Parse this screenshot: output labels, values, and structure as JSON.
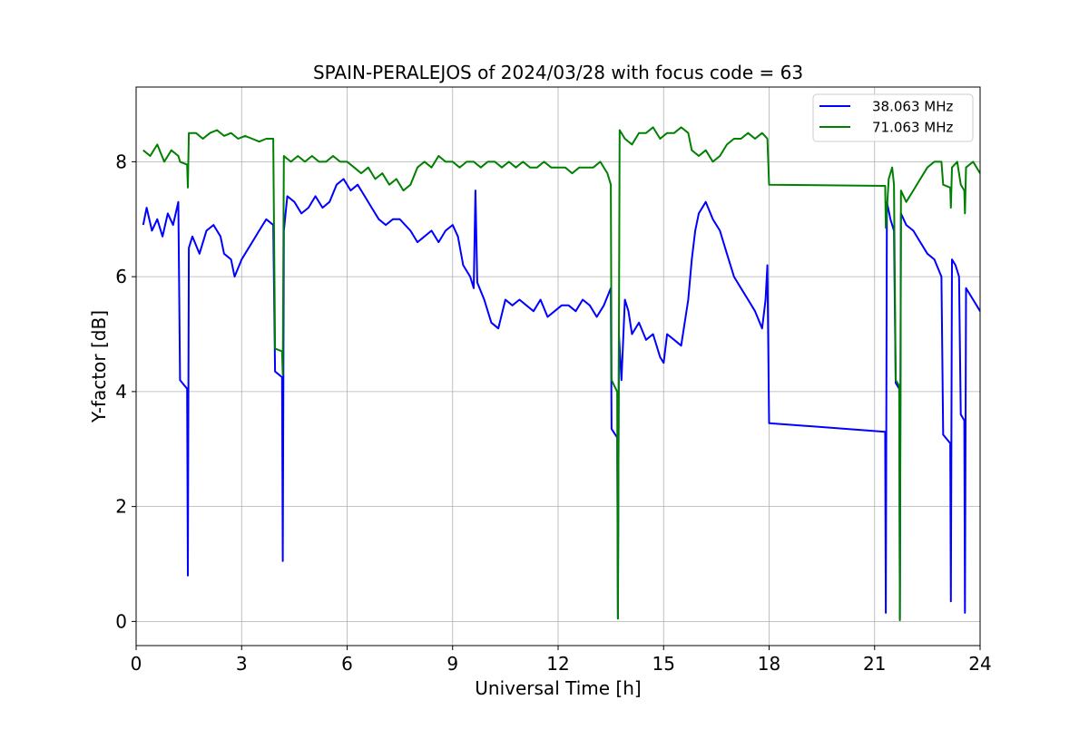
{
  "chart_data": {
    "type": "line",
    "title": "SPAIN-PERALEJOS of 2024/03/28 with focus code = 63",
    "xlabel": "Universal Time [h]",
    "ylabel": "Y-factor [dB]",
    "xlim": [
      0,
      24
    ],
    "ylim": [
      -0.42,
      9.3
    ],
    "xticks": [
      0,
      3,
      6,
      9,
      12,
      15,
      18,
      21,
      24
    ],
    "yticks": [
      0,
      2,
      4,
      6,
      8
    ],
    "grid": true,
    "legend_position": "top-right",
    "series": [
      {
        "name": "38.063 MHz",
        "color": "#0000ff",
        "points": [
          [
            0.2,
            6.9
          ],
          [
            0.3,
            7.2
          ],
          [
            0.45,
            6.8
          ],
          [
            0.6,
            7.0
          ],
          [
            0.75,
            6.7
          ],
          [
            0.9,
            7.1
          ],
          [
            1.05,
            6.9
          ],
          [
            1.2,
            7.3
          ],
          [
            1.25,
            4.2
          ],
          [
            1.45,
            4.05
          ],
          [
            1.47,
            0.8
          ],
          [
            1.5,
            6.5
          ],
          [
            1.6,
            6.7
          ],
          [
            1.8,
            6.4
          ],
          [
            2.0,
            6.8
          ],
          [
            2.2,
            6.9
          ],
          [
            2.4,
            6.7
          ],
          [
            2.5,
            6.4
          ],
          [
            2.7,
            6.3
          ],
          [
            2.8,
            6.0
          ],
          [
            3.0,
            6.3
          ],
          [
            3.1,
            6.4
          ],
          [
            3.3,
            6.6
          ],
          [
            3.5,
            6.8
          ],
          [
            3.7,
            7.0
          ],
          [
            3.9,
            6.9
          ],
          [
            3.95,
            4.35
          ],
          [
            4.15,
            4.25
          ],
          [
            4.17,
            1.05
          ],
          [
            4.2,
            6.8
          ],
          [
            4.3,
            7.4
          ],
          [
            4.5,
            7.3
          ],
          [
            4.7,
            7.1
          ],
          [
            4.9,
            7.2
          ],
          [
            5.1,
            7.4
          ],
          [
            5.3,
            7.2
          ],
          [
            5.5,
            7.3
          ],
          [
            5.7,
            7.6
          ],
          [
            5.9,
            7.7
          ],
          [
            6.1,
            7.5
          ],
          [
            6.3,
            7.6
          ],
          [
            6.5,
            7.4
          ],
          [
            6.7,
            7.2
          ],
          [
            6.9,
            7.0
          ],
          [
            7.1,
            6.9
          ],
          [
            7.3,
            7.0
          ],
          [
            7.5,
            7.0
          ],
          [
            7.8,
            6.8
          ],
          [
            8.0,
            6.6
          ],
          [
            8.2,
            6.7
          ],
          [
            8.4,
            6.8
          ],
          [
            8.6,
            6.6
          ],
          [
            8.8,
            6.8
          ],
          [
            9.0,
            6.9
          ],
          [
            9.15,
            6.7
          ],
          [
            9.3,
            6.2
          ],
          [
            9.5,
            6.0
          ],
          [
            9.6,
            5.8
          ],
          [
            9.65,
            7.5
          ],
          [
            9.7,
            5.9
          ],
          [
            9.9,
            5.6
          ],
          [
            10.1,
            5.2
          ],
          [
            10.3,
            5.1
          ],
          [
            10.5,
            5.6
          ],
          [
            10.7,
            5.5
          ],
          [
            10.9,
            5.6
          ],
          [
            11.1,
            5.5
          ],
          [
            11.3,
            5.4
          ],
          [
            11.5,
            5.6
          ],
          [
            11.7,
            5.3
          ],
          [
            11.9,
            5.4
          ],
          [
            12.1,
            5.5
          ],
          [
            12.3,
            5.5
          ],
          [
            12.5,
            5.4
          ],
          [
            12.7,
            5.6
          ],
          [
            12.9,
            5.5
          ],
          [
            13.1,
            5.3
          ],
          [
            13.3,
            5.5
          ],
          [
            13.5,
            5.8
          ],
          [
            13.52,
            3.35
          ],
          [
            13.68,
            3.2
          ],
          [
            13.7,
            0.05
          ],
          [
            13.73,
            5.0
          ],
          [
            13.8,
            4.2
          ],
          [
            13.9,
            5.6
          ],
          [
            14.0,
            5.4
          ],
          [
            14.1,
            5.0
          ],
          [
            14.3,
            5.2
          ],
          [
            14.5,
            4.9
          ],
          [
            14.7,
            5.0
          ],
          [
            14.9,
            4.6
          ],
          [
            15.0,
            4.5
          ],
          [
            15.1,
            5.0
          ],
          [
            15.3,
            4.9
          ],
          [
            15.5,
            4.8
          ],
          [
            15.7,
            5.6
          ],
          [
            15.8,
            6.3
          ],
          [
            15.9,
            6.8
          ],
          [
            16.0,
            7.1
          ],
          [
            16.2,
            7.3
          ],
          [
            16.4,
            7.0
          ],
          [
            16.6,
            6.8
          ],
          [
            16.8,
            6.4
          ],
          [
            17.0,
            6.0
          ],
          [
            17.2,
            5.8
          ],
          [
            17.4,
            5.6
          ],
          [
            17.6,
            5.4
          ],
          [
            17.8,
            5.1
          ],
          [
            17.9,
            5.6
          ],
          [
            17.95,
            6.2
          ],
          [
            18.0,
            3.45
          ],
          [
            21.3,
            3.3
          ],
          [
            21.32,
            0.15
          ],
          [
            21.35,
            7.3
          ],
          [
            21.45,
            7.0
          ],
          [
            21.55,
            6.8
          ],
          [
            21.6,
            4.15
          ],
          [
            21.7,
            4.05
          ],
          [
            21.72,
            0.05
          ],
          [
            21.75,
            7.1
          ],
          [
            21.9,
            6.9
          ],
          [
            22.1,
            6.8
          ],
          [
            22.3,
            6.6
          ],
          [
            22.5,
            6.4
          ],
          [
            22.7,
            6.3
          ],
          [
            22.9,
            6.0
          ],
          [
            22.95,
            3.25
          ],
          [
            23.15,
            3.1
          ],
          [
            23.17,
            0.35
          ],
          [
            23.2,
            6.3
          ],
          [
            23.3,
            6.2
          ],
          [
            23.4,
            6.0
          ],
          [
            23.45,
            3.6
          ],
          [
            23.55,
            3.5
          ],
          [
            23.57,
            0.15
          ],
          [
            23.6,
            5.8
          ],
          [
            23.8,
            5.6
          ],
          [
            24.0,
            5.4
          ]
        ]
      },
      {
        "name": "71.063 MHz",
        "color": "#008000",
        "points": [
          [
            0.2,
            8.2
          ],
          [
            0.4,
            8.1
          ],
          [
            0.6,
            8.3
          ],
          [
            0.8,
            8.0
          ],
          [
            1.0,
            8.2
          ],
          [
            1.2,
            8.1
          ],
          [
            1.25,
            8.0
          ],
          [
            1.45,
            7.95
          ],
          [
            1.47,
            7.55
          ],
          [
            1.5,
            8.5
          ],
          [
            1.7,
            8.5
          ],
          [
            1.9,
            8.4
          ],
          [
            2.1,
            8.5
          ],
          [
            2.3,
            8.55
          ],
          [
            2.5,
            8.45
          ],
          [
            2.7,
            8.5
          ],
          [
            2.9,
            8.4
          ],
          [
            3.1,
            8.45
          ],
          [
            3.3,
            8.4
          ],
          [
            3.5,
            8.35
          ],
          [
            3.7,
            8.4
          ],
          [
            3.9,
            8.4
          ],
          [
            3.95,
            4.75
          ],
          [
            4.15,
            4.7
          ],
          [
            4.17,
            4.3
          ],
          [
            4.2,
            8.1
          ],
          [
            4.4,
            8.0
          ],
          [
            4.6,
            8.1
          ],
          [
            4.8,
            8.0
          ],
          [
            5.0,
            8.1
          ],
          [
            5.2,
            8.0
          ],
          [
            5.4,
            8.0
          ],
          [
            5.6,
            8.1
          ],
          [
            5.8,
            8.0
          ],
          [
            6.0,
            8.0
          ],
          [
            6.2,
            7.9
          ],
          [
            6.4,
            7.8
          ],
          [
            6.6,
            7.9
          ],
          [
            6.8,
            7.7
          ],
          [
            7.0,
            7.8
          ],
          [
            7.2,
            7.6
          ],
          [
            7.4,
            7.7
          ],
          [
            7.6,
            7.5
          ],
          [
            7.8,
            7.6
          ],
          [
            8.0,
            7.9
          ],
          [
            8.2,
            8.0
          ],
          [
            8.4,
            7.9
          ],
          [
            8.6,
            8.1
          ],
          [
            8.8,
            8.0
          ],
          [
            9.0,
            8.0
          ],
          [
            9.2,
            7.9
          ],
          [
            9.4,
            8.0
          ],
          [
            9.6,
            8.0
          ],
          [
            9.8,
            7.9
          ],
          [
            10.0,
            8.0
          ],
          [
            10.2,
            8.0
          ],
          [
            10.4,
            7.9
          ],
          [
            10.6,
            8.0
          ],
          [
            10.8,
            7.9
          ],
          [
            11.0,
            8.0
          ],
          [
            11.2,
            7.9
          ],
          [
            11.4,
            7.9
          ],
          [
            11.6,
            8.0
          ],
          [
            11.8,
            7.9
          ],
          [
            12.0,
            7.9
          ],
          [
            12.2,
            7.9
          ],
          [
            12.4,
            7.8
          ],
          [
            12.6,
            7.9
          ],
          [
            12.8,
            7.9
          ],
          [
            13.0,
            7.9
          ],
          [
            13.2,
            8.0
          ],
          [
            13.4,
            7.8
          ],
          [
            13.5,
            7.6
          ],
          [
            13.52,
            4.2
          ],
          [
            13.68,
            4.0
          ],
          [
            13.7,
            0.05
          ],
          [
            13.75,
            8.55
          ],
          [
            13.9,
            8.4
          ],
          [
            14.1,
            8.3
          ],
          [
            14.3,
            8.5
          ],
          [
            14.5,
            8.5
          ],
          [
            14.7,
            8.6
          ],
          [
            14.9,
            8.4
          ],
          [
            15.1,
            8.5
          ],
          [
            15.3,
            8.5
          ],
          [
            15.5,
            8.6
          ],
          [
            15.7,
            8.5
          ],
          [
            15.8,
            8.2
          ],
          [
            16.0,
            8.1
          ],
          [
            16.2,
            8.2
          ],
          [
            16.4,
            8.0
          ],
          [
            16.6,
            8.1
          ],
          [
            16.8,
            8.3
          ],
          [
            17.0,
            8.4
          ],
          [
            17.2,
            8.4
          ],
          [
            17.4,
            8.5
          ],
          [
            17.6,
            8.4
          ],
          [
            17.8,
            8.5
          ],
          [
            17.95,
            8.4
          ],
          [
            18.0,
            7.6
          ],
          [
            21.3,
            7.58
          ],
          [
            21.32,
            6.85
          ],
          [
            21.4,
            7.7
          ],
          [
            21.5,
            7.9
          ],
          [
            21.55,
            7.6
          ],
          [
            21.6,
            4.2
          ],
          [
            21.7,
            4.1
          ],
          [
            21.72,
            0.02
          ],
          [
            21.75,
            7.5
          ],
          [
            21.9,
            7.3
          ],
          [
            22.1,
            7.5
          ],
          [
            22.3,
            7.7
          ],
          [
            22.5,
            7.9
          ],
          [
            22.7,
            8.0
          ],
          [
            22.9,
            8.0
          ],
          [
            22.95,
            7.6
          ],
          [
            23.15,
            7.55
          ],
          [
            23.17,
            7.2
          ],
          [
            23.2,
            7.9
          ],
          [
            23.35,
            8.0
          ],
          [
            23.45,
            7.6
          ],
          [
            23.55,
            7.5
          ],
          [
            23.57,
            7.1
          ],
          [
            23.6,
            7.9
          ],
          [
            23.8,
            8.0
          ],
          [
            24.0,
            7.8
          ]
        ]
      }
    ]
  }
}
